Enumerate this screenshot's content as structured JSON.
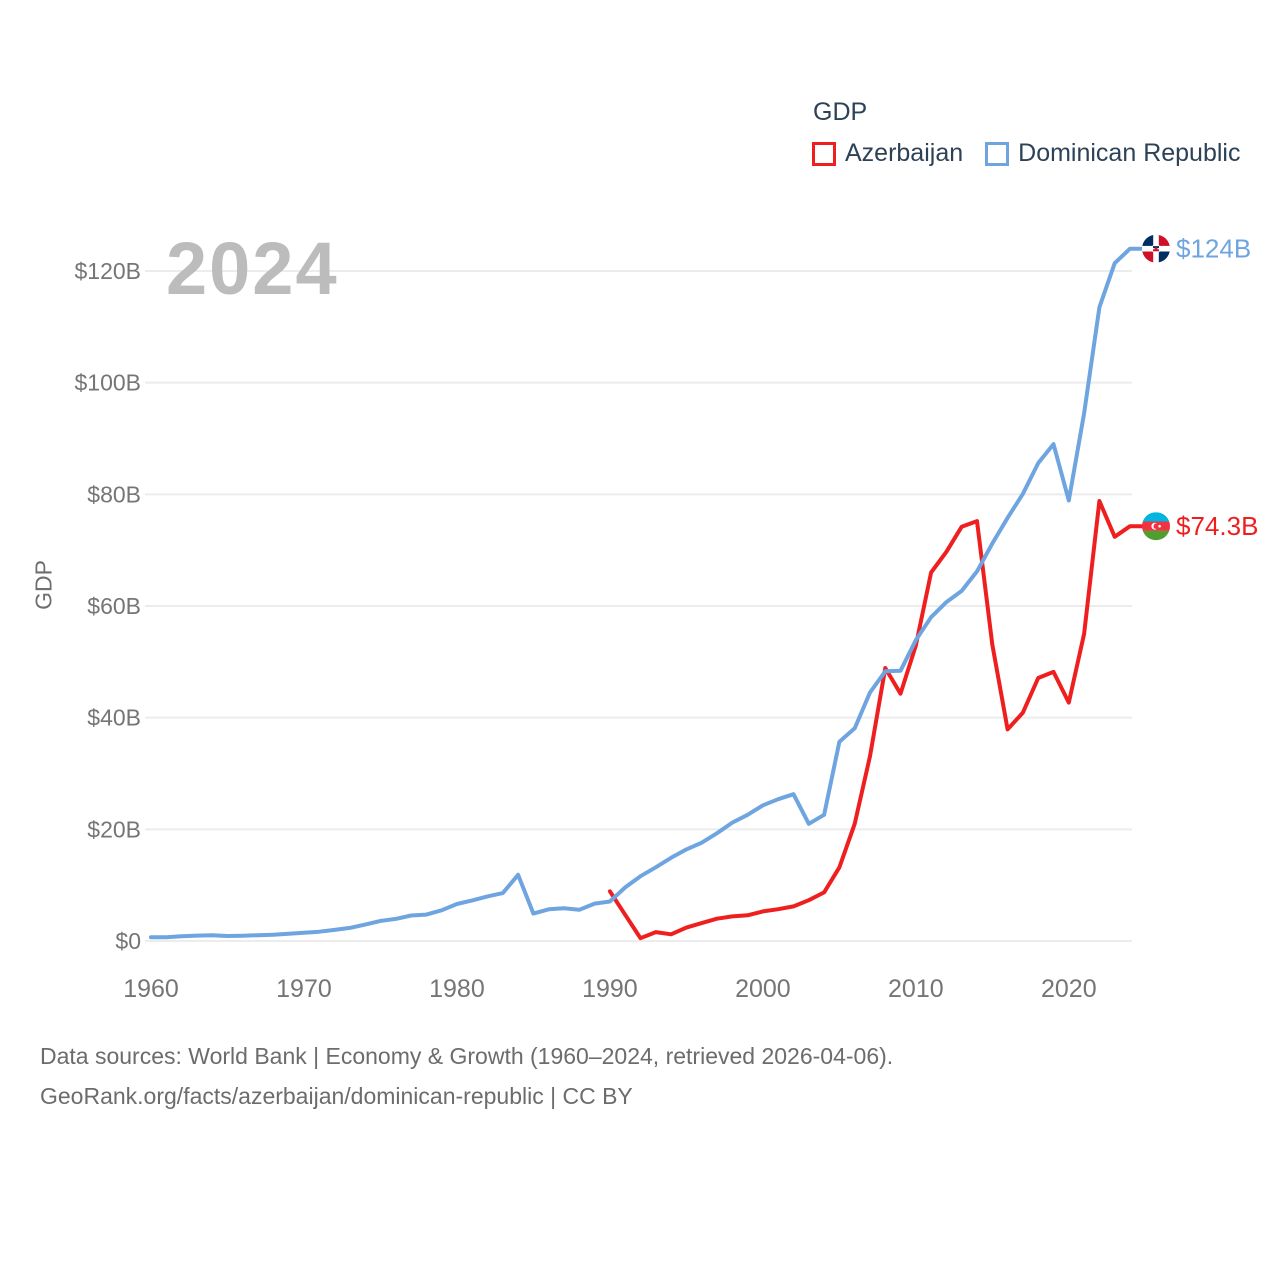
{
  "legend": {
    "title": "GDP",
    "items": [
      {
        "label": "Azerbaijan",
        "color": "#ef1f1f"
      },
      {
        "label": "Dominican Republic",
        "color": "#6ea5e0"
      }
    ]
  },
  "watermark": "2024",
  "y_axis_title": "GDP",
  "source": {
    "line1": "Data sources: World Bank | Economy & Growth (1960–2024, retrieved 2026-04-06).",
    "line2": "GeoRank.org/facts/azerbaijan/dominican-republic | CC BY"
  },
  "chart_data": {
    "type": "line",
    "title": "GDP",
    "xlabel": "",
    "ylabel": "GDP",
    "x_range": [
      1960,
      2024
    ],
    "y_range": [
      0,
      120
    ],
    "grid": "horizontal",
    "legend_position": "top-right",
    "x_ticks": {
      "values": [
        1960,
        1970,
        1980,
        1990,
        2000,
        2010,
        2020
      ],
      "labels": [
        "1960",
        "1970",
        "1980",
        "1990",
        "2000",
        "2010",
        "2020"
      ]
    },
    "y_ticks": {
      "values": [
        0,
        20,
        40,
        60,
        80,
        100,
        120
      ],
      "labels": [
        "$0",
        "$20B",
        "$40B",
        "$60B",
        "$80B",
        "$100B",
        "$120B"
      ]
    },
    "x": [
      1960,
      1961,
      1962,
      1963,
      1964,
      1965,
      1966,
      1967,
      1968,
      1969,
      1970,
      1971,
      1972,
      1973,
      1974,
      1975,
      1976,
      1977,
      1978,
      1979,
      1980,
      1981,
      1982,
      1983,
      1984,
      1985,
      1986,
      1987,
      1988,
      1989,
      1990,
      1991,
      1992,
      1993,
      1994,
      1995,
      1996,
      1997,
      1998,
      1999,
      2000,
      2001,
      2002,
      2003,
      2004,
      2005,
      2006,
      2007,
      2008,
      2009,
      2010,
      2011,
      2012,
      2013,
      2014,
      2015,
      2016,
      2017,
      2018,
      2019,
      2020,
      2021,
      2022,
      2023,
      2024
    ],
    "series": [
      {
        "name": "Azerbaijan",
        "color": "#ef1f1f",
        "values": [
          null,
          null,
          null,
          null,
          null,
          null,
          null,
          null,
          null,
          null,
          null,
          null,
          null,
          null,
          null,
          null,
          null,
          null,
          null,
          null,
          null,
          null,
          null,
          null,
          null,
          null,
          null,
          null,
          null,
          null,
          8.9,
          4.7,
          0.5,
          1.6,
          1.2,
          2.4,
          3.2,
          4.0,
          4.4,
          4.6,
          5.3,
          5.7,
          6.2,
          7.3,
          8.7,
          13.2,
          21.0,
          33.1,
          48.9,
          44.3,
          52.9,
          66.0,
          69.7,
          74.2,
          75.2,
          53.1,
          37.9,
          40.9,
          47.1,
          48.2,
          42.7,
          55.0,
          78.8,
          72.4,
          74.3
        ]
      },
      {
        "name": "Dominican Republic",
        "color": "#6ea5e0",
        "values": [
          0.67,
          0.68,
          0.85,
          0.97,
          1.04,
          0.89,
          0.95,
          1.03,
          1.13,
          1.3,
          1.49,
          1.67,
          1.99,
          2.35,
          2.93,
          3.6,
          3.95,
          4.56,
          4.73,
          5.5,
          6.63,
          7.27,
          7.98,
          8.58,
          11.85,
          4.91,
          5.68,
          5.87,
          5.58,
          6.7,
          7.07,
          9.6,
          11.6,
          13.2,
          14.9,
          16.4,
          17.6,
          19.3,
          21.2,
          22.6,
          24.3,
          25.4,
          26.3,
          21.0,
          22.6,
          35.7,
          38.1,
          44.5,
          48.3,
          48.4,
          53.9,
          58.0,
          60.7,
          62.7,
          66.2,
          71.2,
          75.8,
          80.1,
          85.6,
          89.0,
          78.9,
          94.5,
          113.5,
          121.4,
          124.0
        ]
      }
    ],
    "end_markers": [
      {
        "series": "Dominican Republic",
        "label": "$124B",
        "value": 124.0,
        "flag": "dominican-republic"
      },
      {
        "series": "Azerbaijan",
        "label": "$74.3B",
        "value": 74.3,
        "flag": "azerbaijan"
      }
    ]
  }
}
